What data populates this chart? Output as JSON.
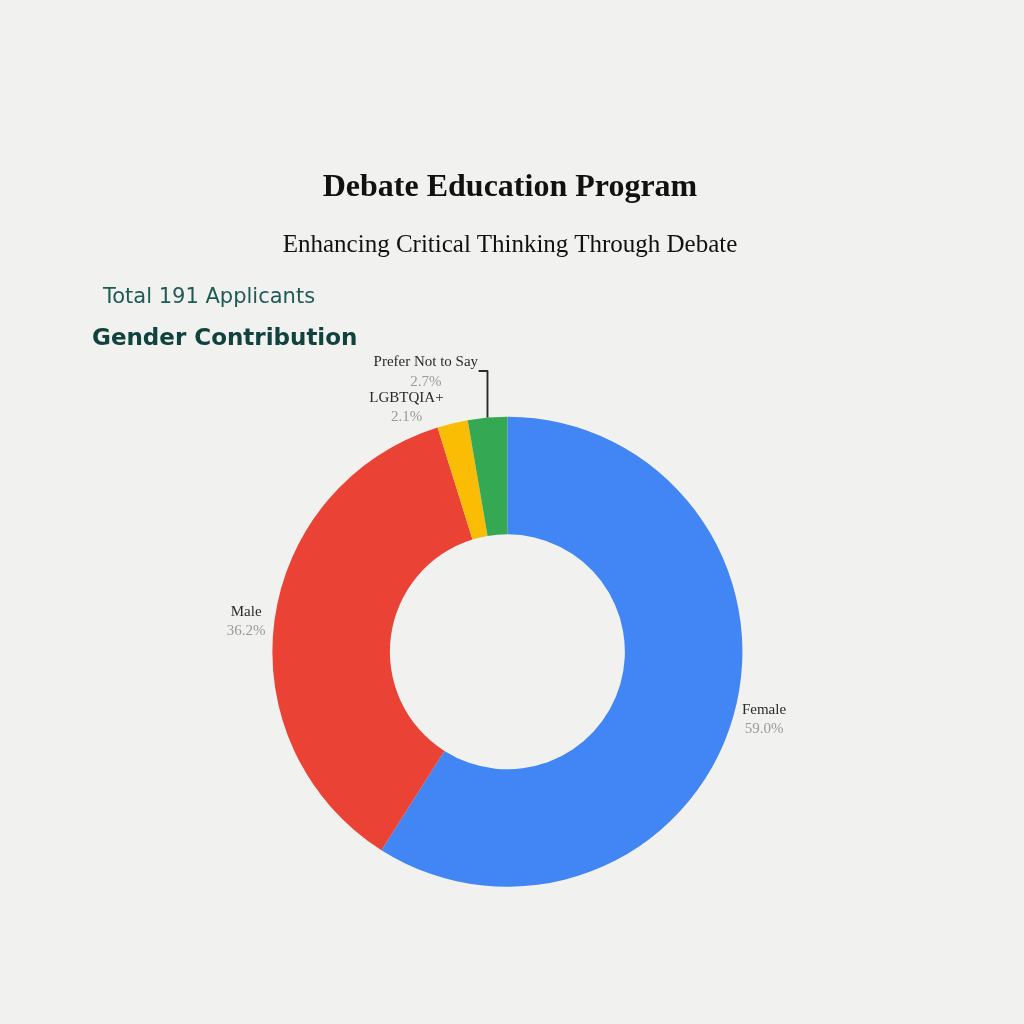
{
  "chart_data": {
    "type": "donut",
    "title": "Debate Education Program",
    "subtitle": "Enhancing Critical Thinking Through Debate",
    "annotations": [
      "Total 191 Applicants",
      "Gender Contribution"
    ],
    "categories": [
      "Female",
      "Male",
      "LGBTQIA+",
      "Prefer Not to Say"
    ],
    "values": [
      59.0,
      36.2,
      2.1,
      2.7
    ],
    "colors": [
      "#4285f4",
      "#ea4335",
      "#fbbc04",
      "#34a853"
    ],
    "value_labels": [
      "59.0%",
      "36.2%",
      "2.1%",
      "2.7%"
    ],
    "legend": false
  }
}
